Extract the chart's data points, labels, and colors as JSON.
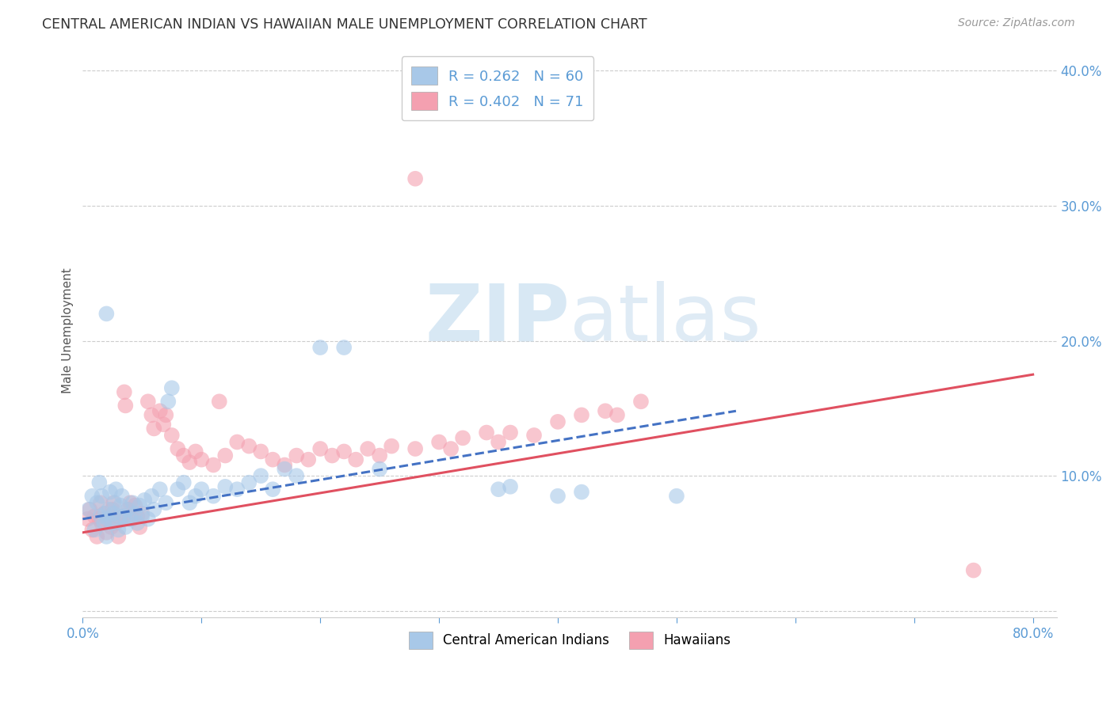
{
  "title": "CENTRAL AMERICAN INDIAN VS HAWAIIAN MALE UNEMPLOYMENT CORRELATION CHART",
  "source": "Source: ZipAtlas.com",
  "ylabel": "Male Unemployment",
  "xlim": [
    0.0,
    0.82
  ],
  "ylim": [
    -0.005,
    0.42
  ],
  "xticks": [
    0.0,
    0.1,
    0.2,
    0.3,
    0.4,
    0.5,
    0.6,
    0.7,
    0.8
  ],
  "xticklabels": [
    "0.0%",
    "",
    "",
    "",
    "",
    "",
    "",
    "",
    "80.0%"
  ],
  "yticks": [
    0.0,
    0.1,
    0.2,
    0.3,
    0.4
  ],
  "yticklabels": [
    "",
    "10.0%",
    "20.0%",
    "30.0%",
    "40.0%"
  ],
  "legend_r1": "R = 0.262",
  "legend_n1": "N = 60",
  "legend_r2": "R = 0.402",
  "legend_n2": "N = 71",
  "blue_color": "#a8c8e8",
  "pink_color": "#f4a0b0",
  "blue_line_color": "#4472c4",
  "pink_line_color": "#e05060",
  "watermark_zip": "ZIP",
  "watermark_atlas": "atlas",
  "blue_scatter_x": [
    0.005,
    0.008,
    0.01,
    0.012,
    0.014,
    0.015,
    0.016,
    0.018,
    0.019,
    0.02,
    0.021,
    0.022,
    0.023,
    0.025,
    0.026,
    0.027,
    0.028,
    0.03,
    0.031,
    0.032,
    0.033,
    0.035,
    0.036,
    0.038,
    0.04,
    0.042,
    0.044,
    0.046,
    0.048,
    0.05,
    0.052,
    0.055,
    0.058,
    0.06,
    0.065,
    0.07,
    0.072,
    0.075,
    0.08,
    0.085,
    0.09,
    0.095,
    0.1,
    0.11,
    0.12,
    0.13,
    0.14,
    0.15,
    0.16,
    0.17,
    0.18,
    0.2,
    0.22,
    0.25,
    0.35,
    0.36,
    0.4,
    0.42,
    0.5,
    0.02
  ],
  "blue_scatter_y": [
    0.075,
    0.085,
    0.06,
    0.08,
    0.095,
    0.07,
    0.085,
    0.065,
    0.072,
    0.055,
    0.068,
    0.075,
    0.088,
    0.065,
    0.072,
    0.08,
    0.09,
    0.06,
    0.07,
    0.078,
    0.085,
    0.07,
    0.062,
    0.075,
    0.068,
    0.08,
    0.072,
    0.065,
    0.078,
    0.07,
    0.082,
    0.068,
    0.085,
    0.075,
    0.09,
    0.08,
    0.155,
    0.165,
    0.09,
    0.095,
    0.08,
    0.085,
    0.09,
    0.085,
    0.092,
    0.09,
    0.095,
    0.1,
    0.09,
    0.105,
    0.1,
    0.195,
    0.195,
    0.105,
    0.09,
    0.092,
    0.085,
    0.088,
    0.085,
    0.22
  ],
  "pink_scatter_x": [
    0.004,
    0.006,
    0.008,
    0.01,
    0.012,
    0.014,
    0.015,
    0.016,
    0.018,
    0.02,
    0.022,
    0.024,
    0.025,
    0.026,
    0.028,
    0.03,
    0.032,
    0.034,
    0.035,
    0.036,
    0.038,
    0.04,
    0.042,
    0.044,
    0.046,
    0.048,
    0.05,
    0.055,
    0.058,
    0.06,
    0.065,
    0.068,
    0.07,
    0.075,
    0.08,
    0.085,
    0.09,
    0.095,
    0.1,
    0.11,
    0.115,
    0.12,
    0.13,
    0.14,
    0.15,
    0.16,
    0.17,
    0.18,
    0.19,
    0.2,
    0.21,
    0.22,
    0.23,
    0.24,
    0.25,
    0.26,
    0.28,
    0.3,
    0.31,
    0.32,
    0.34,
    0.35,
    0.36,
    0.38,
    0.4,
    0.42,
    0.44,
    0.45,
    0.47,
    0.75,
    0.28
  ],
  "pink_scatter_y": [
    0.068,
    0.075,
    0.06,
    0.07,
    0.055,
    0.068,
    0.08,
    0.065,
    0.072,
    0.058,
    0.07,
    0.062,
    0.075,
    0.08,
    0.065,
    0.055,
    0.068,
    0.07,
    0.162,
    0.152,
    0.075,
    0.08,
    0.068,
    0.078,
    0.07,
    0.062,
    0.072,
    0.155,
    0.145,
    0.135,
    0.148,
    0.138,
    0.145,
    0.13,
    0.12,
    0.115,
    0.11,
    0.118,
    0.112,
    0.108,
    0.155,
    0.115,
    0.125,
    0.122,
    0.118,
    0.112,
    0.108,
    0.115,
    0.112,
    0.12,
    0.115,
    0.118,
    0.112,
    0.12,
    0.115,
    0.122,
    0.12,
    0.125,
    0.12,
    0.128,
    0.132,
    0.125,
    0.132,
    0.13,
    0.14,
    0.145,
    0.148,
    0.145,
    0.155,
    0.03,
    0.32
  ],
  "blue_line_x": [
    0.0,
    0.55
  ],
  "blue_line_y": [
    0.068,
    0.148
  ],
  "pink_line_x": [
    0.0,
    0.8
  ],
  "pink_line_y": [
    0.058,
    0.175
  ],
  "grid_color": "#cccccc",
  "tick_color": "#5b9bd5",
  "title_color": "#333333",
  "source_color": "#999999",
  "ylabel_color": "#555555"
}
